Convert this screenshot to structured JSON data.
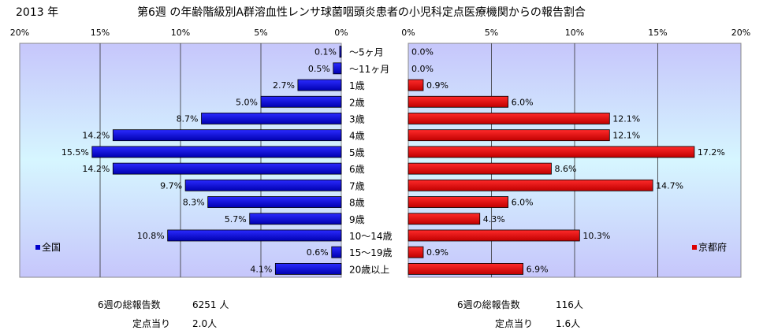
{
  "header": {
    "year": "2013 年",
    "title": "第6週 の年齢階級別A群溶血性レンサ球菌咽頭炎患者の小児科定点医療機関からの報告割合"
  },
  "chart_data": [
    {
      "type": "bar",
      "orientation": "horizontal",
      "direction": "right-to-left",
      "legend": "全国",
      "legend_position": "bottom-left",
      "color": "#0000cc",
      "xlim": [
        0,
        20
      ],
      "ticks": [
        "20%",
        "15%",
        "10%",
        "5%",
        "0%"
      ],
      "categories": [
        "～5ヶ月",
        "～11ヶ月",
        "1歳",
        "2歳",
        "3歳",
        "4歳",
        "5歳",
        "6歳",
        "7歳",
        "8歳",
        "9歳",
        "10～14歳",
        "15～19歳",
        "20歳以上"
      ],
      "values": [
        0.1,
        0.5,
        2.7,
        5.0,
        8.7,
        14.2,
        15.5,
        14.2,
        9.7,
        8.3,
        5.7,
        10.8,
        0.6,
        4.1
      ],
      "labels": [
        "0.1%",
        "0.5%",
        "2.7%",
        "5.0%",
        "8.7%",
        "14.2%",
        "15.5%",
        "14.2%",
        "9.7%",
        "8.3%",
        "5.7%",
        "10.8%",
        "0.6%",
        "4.1%"
      ]
    },
    {
      "type": "bar",
      "orientation": "horizontal",
      "direction": "left-to-right",
      "legend": "京都府",
      "legend_position": "bottom-right",
      "color": "#dd0000",
      "xlim": [
        0,
        20
      ],
      "ticks": [
        "0%",
        "5%",
        "10%",
        "15%",
        "20%"
      ],
      "categories": [
        "～5ヶ月",
        "～11ヶ月",
        "1歳",
        "2歳",
        "3歳",
        "4歳",
        "5歳",
        "6歳",
        "7歳",
        "8歳",
        "9歳",
        "10～14歳",
        "15～19歳",
        "20歳以上"
      ],
      "values": [
        0.0,
        0.0,
        0.9,
        6.0,
        12.1,
        12.1,
        17.2,
        8.6,
        14.7,
        6.0,
        4.3,
        10.3,
        0.9,
        6.9
      ],
      "labels": [
        "0.0%",
        "0.0%",
        "0.9%",
        "6.0%",
        "12.1%",
        "12.1%",
        "17.2%",
        "8.6%",
        "14.7%",
        "6.0%",
        "4.3%",
        "10.3%",
        "0.9%",
        "6.9%"
      ]
    }
  ],
  "footer": {
    "national": {
      "total_label": "6週の総報告数",
      "total_value": "6251 人",
      "per_label": "定点当り",
      "per_value": "2.0人"
    },
    "kyoto": {
      "total_label": "6週の総報告数",
      "total_value": "116人",
      "per_label": "定点当り",
      "per_value": "1.6人"
    }
  }
}
